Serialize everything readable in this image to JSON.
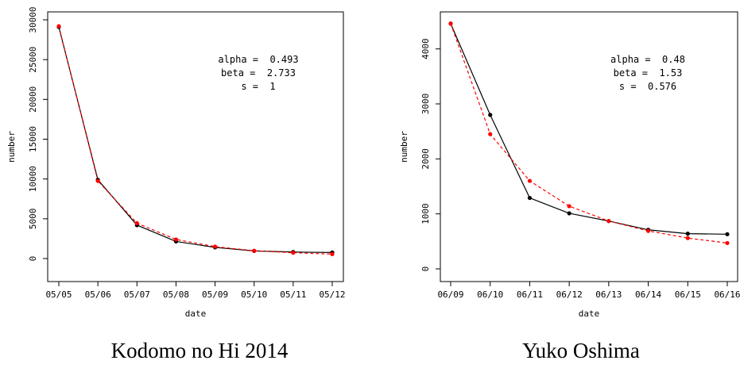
{
  "chart_data": [
    {
      "type": "line",
      "caption": "Kodomo no Hi 2014",
      "xlabel": "date",
      "ylabel": "number",
      "categories": [
        "05/05",
        "05/06",
        "05/07",
        "05/08",
        "05/09",
        "05/10",
        "05/11",
        "05/12"
      ],
      "ylim": [
        0,
        30000
      ],
      "yticks": [
        0,
        5000,
        10000,
        15000,
        20000,
        25000,
        30000
      ],
      "annotations": [
        "alpha =  0.493",
        "beta =  2.733",
        "s =  1"
      ],
      "series": [
        {
          "color": "#000000",
          "style": "solid",
          "values": [
            29100,
            9900,
            4200,
            2150,
            1400,
            960,
            820,
            760
          ]
        },
        {
          "color": "#ff0000",
          "style": "dashed",
          "values": [
            29200,
            9750,
            4450,
            2400,
            1500,
            980,
            730,
            560
          ]
        }
      ]
    },
    {
      "type": "line",
      "caption": "Yuko Oshima",
      "xlabel": "date",
      "ylabel": "number",
      "categories": [
        "06/09",
        "06/10",
        "06/11",
        "06/12",
        "06/13",
        "06/14",
        "06/15",
        "06/16"
      ],
      "ylim": [
        0,
        4500
      ],
      "yticks": [
        0,
        1000,
        2000,
        3000,
        4000
      ],
      "annotations": [
        "alpha =  0.48",
        "beta =  1.53",
        "s =  0.576"
      ],
      "series": [
        {
          "color": "#000000",
          "style": "solid",
          "values": [
            4460,
            2800,
            1290,
            1010,
            870,
            710,
            640,
            630
          ]
        },
        {
          "color": "#ff0000",
          "style": "dashed",
          "values": [
            4460,
            2450,
            1600,
            1140,
            870,
            690,
            560,
            470
          ]
        }
      ]
    }
  ]
}
